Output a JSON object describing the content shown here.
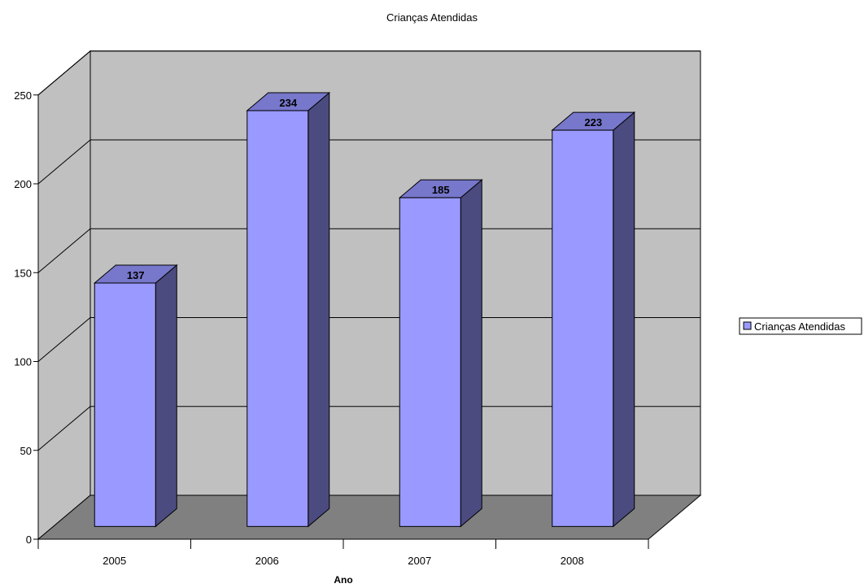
{
  "chart_data": {
    "type": "bar",
    "title": "Crianças Atendidas",
    "xlabel": "Ano",
    "ylabel": "",
    "categories": [
      "2005",
      "2006",
      "2007",
      "2008"
    ],
    "series": [
      {
        "name": "Crianças Atendidas",
        "values": [
          137,
          234,
          185,
          223
        ]
      }
    ],
    "ylim": [
      0,
      250
    ],
    "yticks": [
      "0",
      "50",
      "100",
      "150",
      "200",
      "250"
    ],
    "grid": true,
    "legend": "right",
    "style": "3d-column",
    "colors": {
      "bar_front": "#9999FF",
      "bar_side": "#4B4B80",
      "bar_top": "#7777CC",
      "wall": "#C0C0C0",
      "floor": "#808080"
    }
  }
}
